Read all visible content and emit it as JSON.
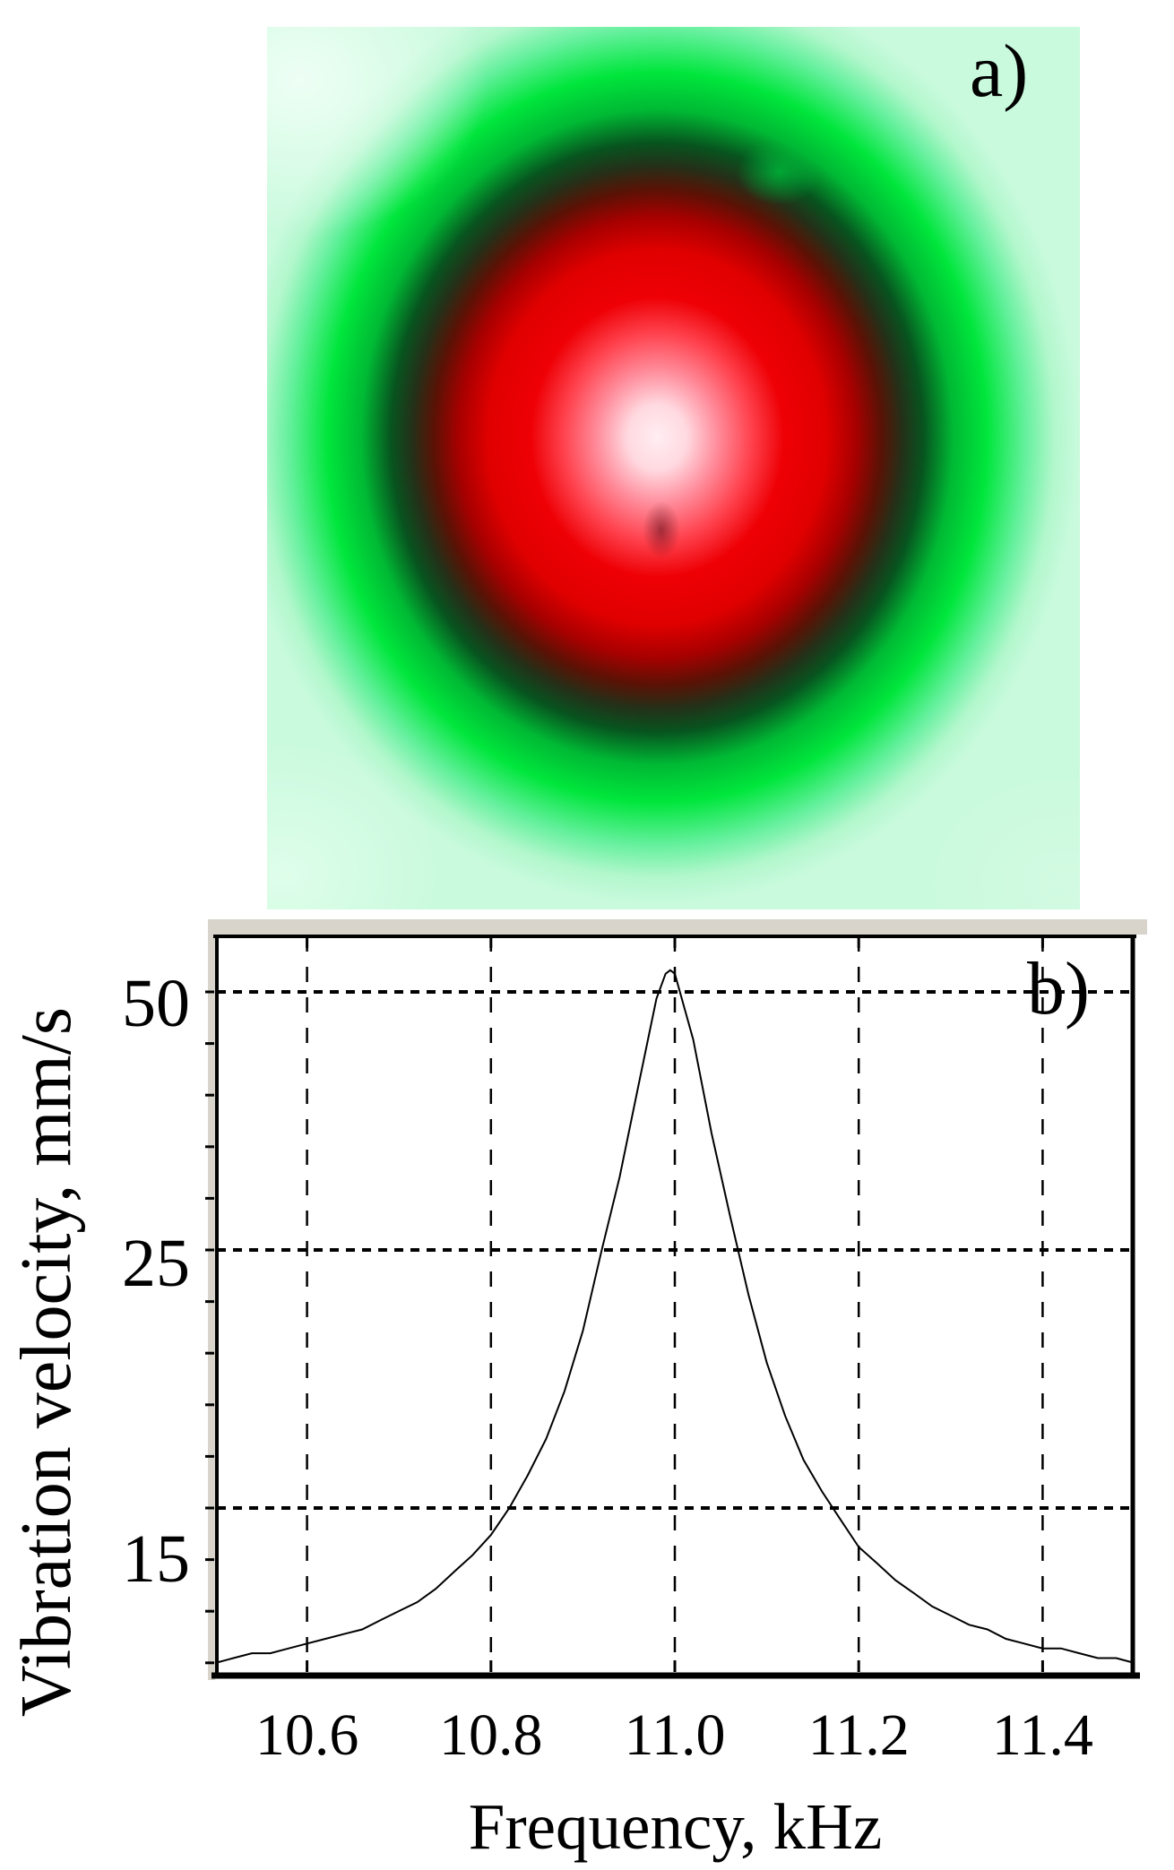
{
  "figure": {
    "description": "Two-panel vibration measurement figure: heat map of vibration amplitude and resonance curve"
  },
  "panel_a": {
    "label": "a)",
    "content": "heat-map-of-vibration-amplitude",
    "palette": {
      "outer_mint": "#c9fadd",
      "bright_green": "#00e63c",
      "dark_green": "#07541f",
      "dark_ring": "#3a1508",
      "red": "#ee0005",
      "pink": "#ff8f9e",
      "core": "#ffeef2"
    }
  },
  "panel_b": {
    "label": "b)",
    "frame_accent_color": "#d8d4cb",
    "line_color": "#000000",
    "y_axis": {
      "title": "Vibration velocity, mm/s",
      "tick_labels": [
        "50",
        "25",
        "15"
      ],
      "scale": "log"
    },
    "x_axis": {
      "title": "Frequency, kHz",
      "tick_labels": [
        "10.6",
        "10.8",
        "11.0",
        "11.2",
        "11.4"
      ]
    }
  },
  "chart_data": {
    "type": "line",
    "title": "",
    "xlabel": "Frequency, kHz",
    "ylabel": "Vibration velocity, mm/s",
    "x_range": [
      10.5,
      11.5
    ],
    "x_ticks": [
      10.6,
      10.8,
      11.0,
      11.2,
      11.4
    ],
    "y_tick_values": [
      50,
      25,
      15
    ],
    "y_scale": "log",
    "grid": {
      "x_gridlines": "dashed",
      "y_gridlines": "dotted"
    },
    "legend": "none",
    "peak": {
      "frequency_kHz": 11.0,
      "velocity_mm_s": 53
    },
    "series": [
      {
        "name": "vibration velocity",
        "points": [
          [
            10.5,
            11.4
          ],
          [
            10.52,
            11.5
          ],
          [
            10.54,
            11.6
          ],
          [
            10.56,
            11.6
          ],
          [
            10.58,
            11.7
          ],
          [
            10.6,
            11.8
          ],
          [
            10.62,
            11.9
          ],
          [
            10.64,
            12.0
          ],
          [
            10.66,
            12.1
          ],
          [
            10.68,
            12.3
          ],
          [
            10.7,
            12.5
          ],
          [
            10.72,
            12.7
          ],
          [
            10.74,
            13.0
          ],
          [
            10.76,
            13.4
          ],
          [
            10.78,
            13.8
          ],
          [
            10.8,
            14.3
          ],
          [
            10.82,
            15.0
          ],
          [
            10.84,
            16.0
          ],
          [
            10.86,
            17.2
          ],
          [
            10.88,
            18.9
          ],
          [
            10.9,
            21.3
          ],
          [
            10.92,
            24.9
          ],
          [
            10.94,
            30.4
          ],
          [
            10.96,
            38.7
          ],
          [
            10.98,
            49.1
          ],
          [
            10.99,
            52.5
          ],
          [
            10.995,
            53.0
          ],
          [
            11.0,
            52.5
          ],
          [
            11.02,
            44.0
          ],
          [
            11.04,
            34.2
          ],
          [
            11.06,
            27.4
          ],
          [
            11.08,
            22.9
          ],
          [
            11.1,
            20.0
          ],
          [
            11.12,
            18.0
          ],
          [
            11.14,
            16.5
          ],
          [
            11.16,
            15.5
          ],
          [
            11.18,
            14.7
          ],
          [
            11.2,
            14.0
          ],
          [
            11.22,
            13.6
          ],
          [
            11.24,
            13.2
          ],
          [
            11.26,
            12.9
          ],
          [
            11.28,
            12.6
          ],
          [
            11.3,
            12.4
          ],
          [
            11.32,
            12.2
          ],
          [
            11.34,
            12.1
          ],
          [
            11.36,
            11.9
          ],
          [
            11.38,
            11.8
          ],
          [
            11.4,
            11.7
          ],
          [
            11.42,
            11.7
          ],
          [
            11.44,
            11.6
          ],
          [
            11.46,
            11.5
          ],
          [
            11.48,
            11.5
          ],
          [
            11.5,
            11.4
          ]
        ]
      }
    ]
  }
}
